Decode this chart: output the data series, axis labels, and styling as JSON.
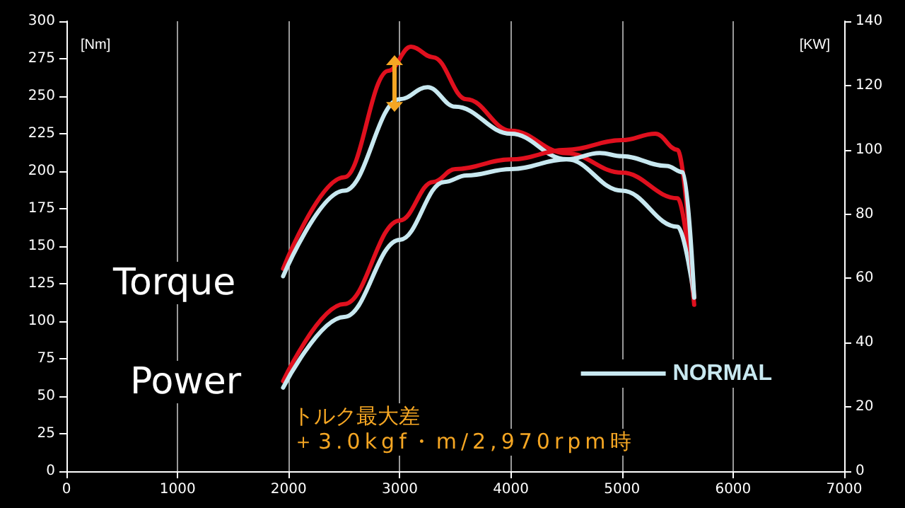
{
  "chart_data": {
    "type": "line",
    "ylabel": "[Nm]",
    "y2label": "[KW]",
    "annotations": [
      "Torque",
      "Power",
      "トルク最大差",
      "＋3.0kgf・m/2,970rpm時"
    ],
    "series": [
      {
        "color": "#e0101e",
        "x": [
          1950,
          2500,
          2900,
          3100,
          3300,
          3600,
          4000,
          4500,
          5000,
          5500,
          5650
        ],
        "values": [
          135,
          196,
          267,
          283,
          276,
          248,
          227,
          212,
          199,
          182,
          111
        ]
      },
      {
        "name": "NORMAL",
        "color": "#c8e8f0",
        "x": [
          1950,
          2500,
          3000,
          3250,
          3500,
          4000,
          4500,
          5000,
          5500,
          5650
        ],
        "values": [
          130,
          187,
          248,
          256,
          243,
          225,
          208,
          187,
          163,
          116
        ]
      },
      {
        "color": "#e0101e",
        "axis": "y2",
        "x": [
          1950,
          2500,
          3000,
          3300,
          3500,
          4000,
          4500,
          5000,
          5300,
          5500,
          5650
        ],
        "values": [
          28,
          52,
          78,
          90,
          94,
          97,
          100,
          103,
          105,
          100,
          54
        ]
      },
      {
        "color": "#c8e8f0",
        "axis": "y2",
        "x": [
          1950,
          2500,
          3000,
          3400,
          3600,
          4000,
          4500,
          4800,
          5000,
          5400,
          5550,
          5650
        ],
        "values": [
          26,
          48,
          72,
          90,
          92,
          94,
          97,
          99,
          98,
          95,
          93,
          54
        ]
      }
    ],
    "xlim": [
      0,
      7000
    ],
    "xticks": [
      0,
      1000,
      2000,
      3000,
      4000,
      5000,
      6000,
      7000
    ],
    "ylim": [
      0,
      300
    ],
    "yticks": [
      0,
      25,
      50,
      75,
      100,
      125,
      150,
      175,
      200,
      225,
      250,
      275,
      300
    ],
    "y2lim": [
      0,
      140
    ],
    "y2ticks": [
      0,
      20,
      40,
      60,
      80,
      100,
      120,
      140
    ],
    "grid": "x",
    "legend": "bottom right",
    "marker": "none",
    "line_style": "solid"
  }
}
